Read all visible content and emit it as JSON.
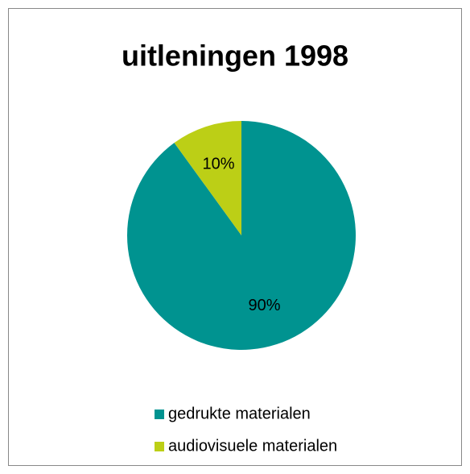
{
  "chart_data": {
    "type": "pie",
    "title": "uitleningen 1998",
    "categories": [
      "gedrukte materialen",
      "audiovisuele materialen"
    ],
    "values": [
      90,
      10
    ],
    "value_labels": [
      "90%",
      "10%"
    ],
    "colors": [
      "#009390",
      "#bccf16"
    ]
  }
}
